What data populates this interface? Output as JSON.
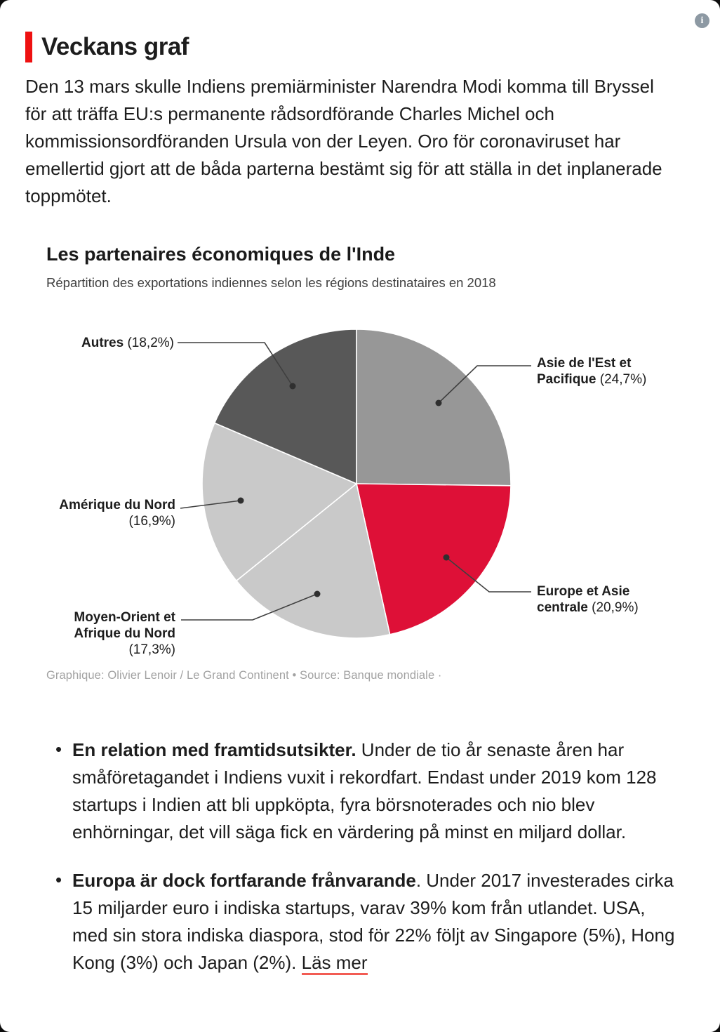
{
  "page": {
    "title": "Veckans graf",
    "info_icon_glyph": "i",
    "intro": "Den 13 mars skulle Indiens premiärminister Narendra Modi komma till Bryssel för att träffa EU:s permanente rådsordförande Charles Michel och kommissionsordföranden Ursula von der Leyen. Oro för coronaviruset har emellertid gjort att de båda parterna bestämt sig för att ställa in det inplanerade toppmötet."
  },
  "chart": {
    "title": "Les partenaires économiques de l'Inde",
    "subtitle": "Répartition des exportations indiennes selon les régions destinataires en 2018",
    "caption": "Graphique: Olivier Lenoir / Le Grand Continent • Source: Banque mondiale ·"
  },
  "chart_data": {
    "type": "pie",
    "title": "Les partenaires économiques de l'Inde",
    "subtitle": "Répartition des exportations indiennes selon les régions destinataires en 2018",
    "unit": "percent of Indian exports by destination region, 2018",
    "direction": "clockwise",
    "start_angle_deg": 0,
    "slices": [
      {
        "id": "asie",
        "label": "Asie de l'Est et Pacifique",
        "value": 24.7,
        "pct_display": " (24,7%)",
        "color": "#979797"
      },
      {
        "id": "europe",
        "label": "Europe et Asie centrale",
        "value": 20.9,
        "pct_display": " (20,9%)",
        "color": "#de1037"
      },
      {
        "id": "moyen",
        "label": "Moyen-Orient et Afrique du Nord",
        "value": 17.3,
        "pct_display": " (17,3%)",
        "color": "#c9c9c9"
      },
      {
        "id": "amerique",
        "label": "Amérique du Nord",
        "value": 16.9,
        "pct_display": " (16,9%)",
        "color": "#c9c9c9"
      },
      {
        "id": "autres",
        "label": "Autres",
        "value": 18.2,
        "pct_display": " (18,2%)",
        "color": "#585858"
      }
    ]
  },
  "bullets": [
    {
      "lead": "En relation med framtidsutsikter.",
      "text": " Under de tio år senaste åren har småföretagandet i Indiens vuxit i rekordfart. Endast under 2019 kom 128 startups i Indien att bli uppköpta, fyra börsnoterades och nio blev enhörningar, det vill säga fick en värdering på minst en miljard dollar."
    },
    {
      "lead": "Europa är dock fortfarande frånvarande",
      "text": ". Under 2017 investerades cirka 15 miljarder euro i indiska startups, varav 39% kom från utlandet. USA, med sin stora indiska diaspora, stod för 22% följt av Singapore (5%), Hong Kong (3%) och Japan (2%). ",
      "link": "Läs mer"
    }
  ],
  "colors": {
    "accent_red": "#ee1111",
    "pie_red": "#de1037",
    "link_underline": "#f25c54",
    "caption_gray": "#a2a2a2",
    "leader_line": "#3f3f3f"
  }
}
